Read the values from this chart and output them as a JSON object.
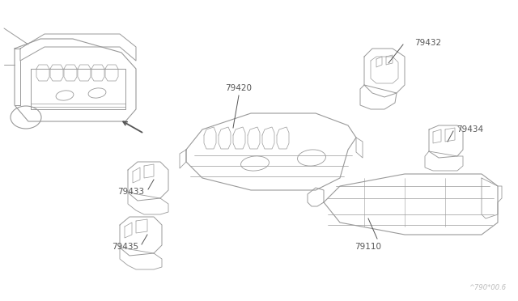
{
  "bg_color": "#ffffff",
  "line_color": "#999999",
  "dark_line": "#555555",
  "text_color": "#555555",
  "watermark": "^790*00.6",
  "figsize": [
    6.4,
    3.72
  ],
  "dpi": 100
}
